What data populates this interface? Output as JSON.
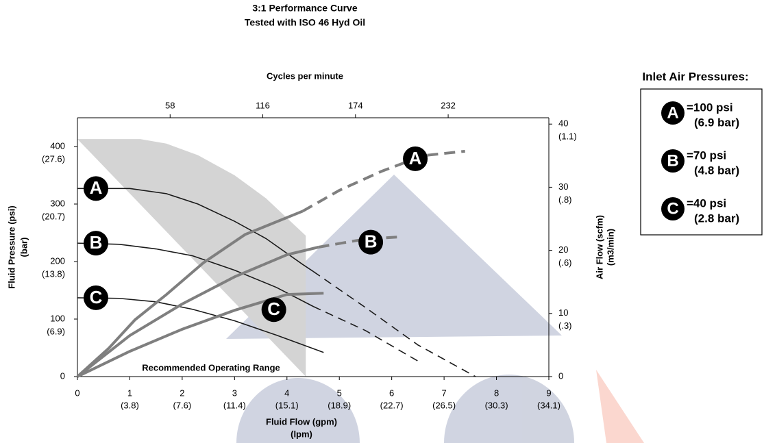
{
  "chart_data": {
    "type": "line",
    "title": "3:1 Performance Curve",
    "subtitle": "Tested with ISO 46 Hyd Oil",
    "xlabel": "Fluid Flow (gpm)",
    "xlabel_sub": "(lpm)",
    "ylabel": "Fluid Pressure (psi)",
    "ylabel_sub": "(bar)",
    "y2label": "Air Flow (scfm)",
    "y2label_sub": "(m3/min)",
    "x2label": "Cycles per minute",
    "xlim": [
      0,
      9
    ],
    "xticks": [
      0,
      1,
      2,
      3,
      4,
      5,
      6,
      7,
      8,
      9
    ],
    "xtick_sublabels": [
      null,
      "(3.8)",
      "(7.6)",
      "(11.4)",
      "(15.1)",
      "(18.9)",
      "(22.7)",
      "(26.5)",
      "(30.3)",
      "(34.1)"
    ],
    "ylim": [
      0,
      450
    ],
    "yticks": [
      0,
      100,
      200,
      300,
      400
    ],
    "ytick_sublabels": [
      null,
      "(6.9)",
      "(13.8)",
      "(20.7)",
      "(27.6)"
    ],
    "y2lim": [
      0,
      41
    ],
    "y2ticks": [
      0,
      10,
      20,
      30,
      40
    ],
    "y2tick_sublabels": [
      null,
      "(.3)",
      "(.6)",
      "(.8)",
      "(1.1)"
    ],
    "x2lim": [
      0,
      295
    ],
    "x2ticks": [
      58,
      116,
      174,
      232
    ],
    "operating_range": {
      "label": "Recommended Operating Range",
      "color": "#d4d4d4",
      "x": [
        0,
        1.2,
        1.7,
        2.3,
        3,
        3.6,
        4.36,
        4.36
      ],
      "values": [
        413,
        413,
        405,
        385,
        350,
        310,
        245,
        0
      ]
    },
    "series": [
      {
        "label": "A",
        "axis": "y",
        "color": "#1a1a1a",
        "segments": [
          {
            "style": "solid",
            "x": [
              0,
              1,
              1.7,
              2.3,
              3,
              3.6,
              4.3,
              4.5
            ],
            "values": [
              327,
              327,
              318,
              300,
              270,
              240,
              195,
              183
            ]
          },
          {
            "style": "dashed",
            "x": [
              4.5,
              5.5,
              6.5,
              7.6
            ],
            "values": [
              183,
              120,
              55,
              0
            ]
          }
        ]
      },
      {
        "label": "B",
        "axis": "y",
        "color": "#1a1a1a",
        "segments": [
          {
            "style": "solid",
            "x": [
              0,
              0.8,
              1.5,
              2.2,
              3,
              3.8,
              4.5
            ],
            "values": [
              232,
              230,
              222,
              210,
              185,
              155,
              122
            ]
          },
          {
            "style": "dashed",
            "x": [
              4.5,
              5.5,
              6.5
            ],
            "values": [
              122,
              80,
              27
            ]
          }
        ]
      },
      {
        "label": "C",
        "axis": "y",
        "color": "#1a1a1a",
        "segments": [
          {
            "style": "solid",
            "x": [
              0,
              0.8,
              1.5,
              2.2,
              3,
              3.8,
              4.7
            ],
            "values": [
              137,
              136,
              130,
              117,
              97,
              72,
              42
            ]
          }
        ]
      },
      {
        "label": "A",
        "axis": "y2",
        "color": "#7f7f7f",
        "segments": [
          {
            "style": "solid",
            "x": [
              0,
              0.6,
              1.1,
              1.7,
              2.4,
              3.2,
              4.3
            ],
            "values": [
              0,
              4.5,
              9,
              13,
              18,
              22.5,
              26.2
            ]
          },
          {
            "style": "dashed",
            "x": [
              4.3,
              5,
              5.8,
              6.6,
              7.4
            ],
            "values": [
              26.2,
              29.5,
              32.5,
              35,
              35.7
            ]
          }
        ]
      },
      {
        "label": "B",
        "axis": "y2",
        "color": "#7f7f7f",
        "segments": [
          {
            "style": "solid",
            "x": [
              0,
              1,
              2,
              3,
              4,
              4.6
            ],
            "values": [
              0,
              6.5,
              11.5,
              15.8,
              19.3,
              20.5
            ]
          },
          {
            "style": "dashed",
            "x": [
              4.6,
              5.5,
              6.1
            ],
            "values": [
              20.5,
              21.8,
              22.1
            ]
          }
        ]
      },
      {
        "label": "C",
        "axis": "y2",
        "color": "#7f7f7f",
        "segments": [
          {
            "style": "solid",
            "x": [
              0,
              1,
              2,
              3,
              4,
              4.7
            ],
            "values": [
              0,
              4,
              7.5,
              10.5,
              13,
              13.2
            ]
          }
        ]
      }
    ],
    "legend": {
      "title": "Inlet  Air Pressures:",
      "entries": [
        {
          "label": "A",
          "text": "=100 psi",
          "subtext": "(6.9 bar)"
        },
        {
          "label": "B",
          "text": "=70 psi",
          "subtext": "(4.8 bar)"
        },
        {
          "label": "C",
          "text": "=40 psi",
          "subtext": "(2.8 bar)"
        }
      ]
    }
  }
}
